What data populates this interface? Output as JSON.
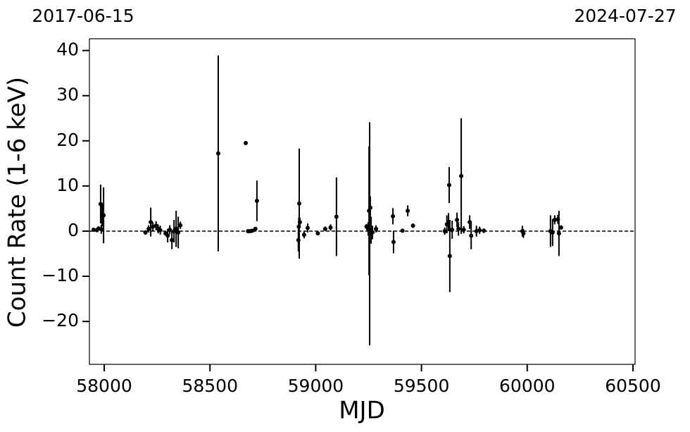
{
  "chart_data": {
    "type": "errorbar-scatter",
    "top_labels": [
      "2017-06-15",
      "2024-07-27"
    ],
    "xlabel": "MJD",
    "ylabel": "Count Rate (1-6 keV)",
    "xlim": [
      57930,
      60510
    ],
    "ylim": [
      -29.5,
      42.6
    ],
    "xticks": [
      58000,
      58500,
      59000,
      59500,
      60000,
      60500
    ],
    "yticks": [
      {
        "value": -20,
        "label": "−20"
      },
      {
        "value": -10,
        "label": "−10"
      },
      0,
      10,
      20,
      30,
      40
    ],
    "hline": 0,
    "color": "#000000",
    "series": [
      {
        "name": "data",
        "x": [
          57950,
          57965,
          57973,
          57983,
          57986,
          57990,
          57997,
          58195,
          58210,
          58220,
          58230,
          58245,
          58255,
          58265,
          58290,
          58300,
          58310,
          58320,
          58330,
          58340,
          58350,
          58360,
          58539,
          58669,
          58680,
          58690,
          58700,
          58715,
          58722,
          58918,
          58920,
          58922,
          58925,
          58945,
          58962,
          59010,
          59045,
          59070,
          59098,
          59240,
          59248,
          59252,
          59255,
          59258,
          59262,
          59268,
          59285,
          59365,
          59368,
          59410,
          59435,
          59460,
          59610,
          59620,
          59628,
          59631,
          59634,
          59645,
          59668,
          59675,
          59688,
          59700,
          59728,
          59735,
          59760,
          59775,
          59795,
          59977,
          59982,
          60110,
          60120,
          60130,
          60145,
          60150,
          60160
        ],
        "values": [
          0.3,
          0.2,
          0.6,
          6.0,
          0.4,
          3.5,
          3.5,
          -0.3,
          0.5,
          2.0,
          1.0,
          1.2,
          0.5,
          0.2,
          -0.5,
          -1.0,
          0.3,
          -2.0,
          0.0,
          0.5,
          -0.3,
          1.3,
          17.2,
          19.5,
          0.0,
          0.0,
          0.1,
          0.5,
          6.7,
          -2.0,
          1.0,
          6.1,
          2.0,
          -0.8,
          0.7,
          -0.5,
          0.5,
          0.8,
          3.2,
          1.0,
          0.5,
          4.5,
          -0.6,
          5.2,
          0.2,
          -0.3,
          0.5,
          3.3,
          -2.4,
          0.1,
          4.5,
          1.2,
          0.0,
          1.5,
          2.0,
          10.2,
          -5.5,
          0.3,
          2.5,
          0.5,
          12.2,
          0.3,
          2.0,
          -1.0,
          0.0,
          0.2,
          0.1,
          0.0,
          -0.5,
          0.0,
          -0.3,
          2.5,
          2.6,
          -0.5,
          0.8
        ],
        "errors": [
          0.3,
          0.3,
          0.4,
          4.3,
          1.0,
          2.5,
          6.2,
          0.5,
          0.8,
          3.2,
          1.0,
          1.0,
          1.0,
          1.0,
          0.5,
          1.5,
          1.0,
          2.0,
          2.5,
          4.0,
          3.5,
          0.8,
          21.7,
          0.0,
          0.2,
          0.2,
          0.3,
          0.4,
          4.5,
          2.5,
          2.0,
          12.2,
          1.0,
          0.8,
          1.0,
          0.4,
          0.5,
          0.7,
          8.7,
          0.6,
          1.5,
          14.3,
          24.7,
          2.5,
          3.0,
          1.5,
          0.8,
          1.8,
          2.5,
          0.3,
          1.2,
          0.5,
          0.8,
          2.0,
          2.0,
          4.0,
          8.0,
          2.0,
          1.6,
          1.5,
          12.8,
          0.8,
          1.5,
          3.0,
          1.2,
          0.8,
          0.5,
          1.2,
          1.0,
          3.5,
          3.0,
          1.0,
          1.0,
          5.0,
          0.5
        ]
      }
    ]
  }
}
